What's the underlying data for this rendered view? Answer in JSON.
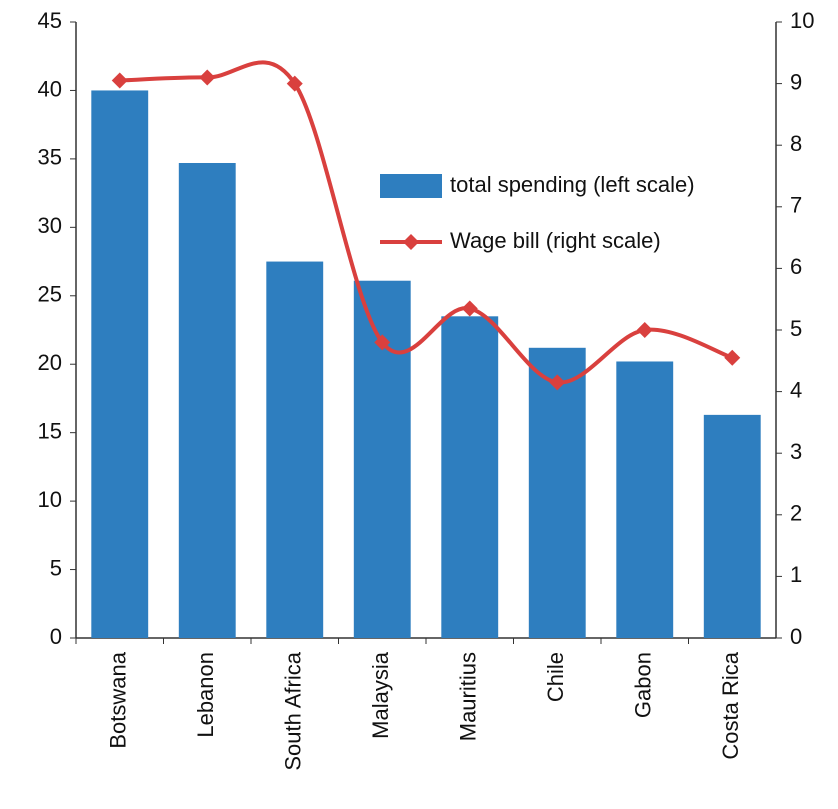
{
  "chart_data": {
    "type": "bar-line",
    "categories": [
      "Botswana",
      "Lebanon",
      "South Africa",
      "Malaysia",
      "Mauritius",
      "Chile",
      "Gabon",
      "Costa Rica"
    ],
    "series": [
      {
        "name": "total spending (left scale)",
        "type": "bar",
        "color": "#2e7ebf",
        "values": [
          40,
          34.7,
          27.5,
          26.1,
          23.5,
          21.2,
          20.2,
          16.3
        ]
      },
      {
        "name": "Wage bill (right scale)",
        "type": "line",
        "axis": "y2",
        "color": "#d9403e",
        "values": [
          9.05,
          9.1,
          9.0,
          4.8,
          5.35,
          4.15,
          5.0,
          4.55
        ]
      }
    ],
    "ylim": [
      0,
      45
    ],
    "yticks": [
      0,
      5,
      10,
      15,
      20,
      25,
      30,
      35,
      40,
      45
    ],
    "y2lim": [
      0,
      10
    ],
    "y2ticks": [
      0,
      1,
      2,
      3,
      4,
      5,
      6,
      7,
      8,
      9,
      10
    ],
    "legend": "upper-right"
  }
}
